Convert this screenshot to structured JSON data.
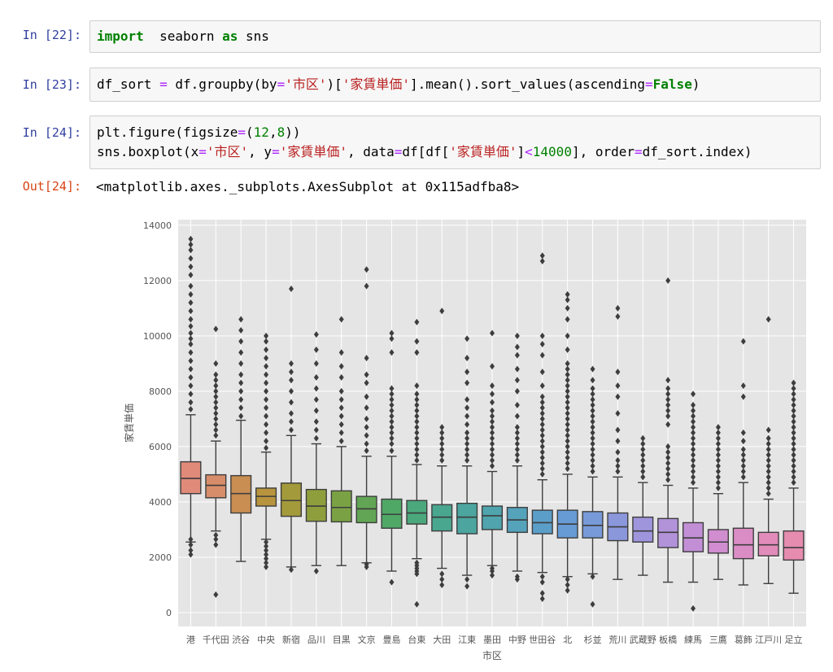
{
  "cells": [
    {
      "prompt": "In [22]:",
      "lines": [
        [
          [
            "kw",
            "import"
          ],
          [
            "",
            "  seaborn "
          ],
          [
            "kw",
            "as"
          ],
          [
            "",
            " sns"
          ]
        ]
      ]
    },
    {
      "prompt": "In [23]:",
      "lines": [
        [
          [
            "",
            "df_sort "
          ],
          [
            "op",
            "="
          ],
          [
            "",
            " df.groupby(by"
          ],
          [
            "op",
            "="
          ],
          [
            "str",
            "'市区'"
          ],
          [
            "",
            ")["
          ],
          [
            "str",
            "'家賃単価'"
          ],
          [
            "",
            "].mean().sort_values(ascending"
          ],
          [
            "op",
            "="
          ],
          [
            "kwc",
            "False"
          ],
          [
            "",
            ")"
          ]
        ]
      ]
    },
    {
      "prompt": "In [24]:",
      "lines": [
        [
          [
            "",
            "plt.figure(figsize"
          ],
          [
            "op",
            "="
          ],
          [
            "",
            "("
          ],
          [
            "num",
            "12"
          ],
          [
            "",
            ","
          ],
          [
            "num",
            "8"
          ],
          [
            "",
            "))"
          ]
        ],
        [
          [
            "",
            "sns.boxplot(x"
          ],
          [
            "op",
            "="
          ],
          [
            "str",
            "'市区'"
          ],
          [
            "",
            ", y"
          ],
          [
            "op",
            "="
          ],
          [
            "str",
            "'家賃単価'"
          ],
          [
            "",
            ", data"
          ],
          [
            "op",
            "="
          ],
          [
            "",
            "df[df["
          ],
          [
            "str",
            "'家賃単価'"
          ],
          [
            "",
            "]"
          ],
          [
            "op",
            "<"
          ],
          [
            "num",
            "14000"
          ],
          [
            "",
            "], order"
          ],
          [
            "op",
            "="
          ],
          [
            "",
            "df_sort.index)"
          ]
        ]
      ]
    }
  ],
  "output": {
    "prompt": "Out[24]:",
    "text": "<matplotlib.axes._subplots.AxesSubplot at 0x115adfba8>"
  },
  "chart_data": {
    "type": "box",
    "xlabel": "市区",
    "ylabel": "家賃単価",
    "ylim": [
      -500,
      14200
    ],
    "yticks": [
      0,
      2000,
      4000,
      6000,
      8000,
      10000,
      12000,
      14000
    ],
    "grid": true,
    "categories": [
      "港",
      "千代田",
      "渋谷",
      "中央",
      "新宿",
      "品川",
      "目黒",
      "文京",
      "豊島",
      "台東",
      "大田",
      "江東",
      "墨田",
      "中野",
      "世田谷",
      "北",
      "杉並",
      "荒川",
      "武蔵野",
      "板橋",
      "練馬",
      "三鷹",
      "葛飾",
      "江戸川",
      "足立"
    ],
    "colors": [
      "#e08a7a",
      "#d88d6a",
      "#c98e52",
      "#b8943e",
      "#a39a3b",
      "#8f9e3d",
      "#7aa245",
      "#62a655",
      "#50a867",
      "#4aa87c",
      "#4aa78f",
      "#4ca59f",
      "#50a4ad",
      "#55a2bb",
      "#5b9fc8",
      "#669bd4",
      "#789ad8",
      "#8b97db",
      "#9f95dc",
      "#b293da",
      "#c28fd6",
      "#d08dcf",
      "#da8cc5",
      "#e18cba",
      "#e68cae"
    ],
    "boxes": [
      {
        "q1": 4300,
        "median": 4850,
        "q3": 5450,
        "whislo": 2550,
        "whishi": 7150,
        "fliers": [
          2100,
          2250,
          2450,
          2650,
          7350,
          7600,
          7900,
          8200,
          8500,
          8800,
          9100,
          9400,
          9700,
          9900,
          10100,
          10350,
          10600,
          10900,
          11200,
          11500,
          11800,
          12200,
          12500,
          12800,
          13100,
          13300,
          13500
        ]
      },
      {
        "q1": 4150,
        "median": 4600,
        "q3": 4980,
        "whislo": 2950,
        "whishi": 6200,
        "fliers": [
          650,
          2450,
          2650,
          2800,
          6400,
          6600,
          6800,
          7000,
          7200,
          7400,
          7600,
          7800,
          8000,
          8200,
          8400,
          8600,
          9000,
          10250
        ]
      },
      {
        "q1": 3600,
        "median": 4300,
        "q3": 4950,
        "whislo": 1850,
        "whishi": 6950,
        "fliers": [
          7100,
          7400,
          7700,
          8000,
          8300,
          8600,
          9000,
          9400,
          9800,
          10200,
          10600
        ]
      },
      {
        "q1": 3850,
        "median": 4200,
        "q3": 4500,
        "whislo": 2650,
        "whishi": 5800,
        "fliers": [
          1650,
          1800,
          1950,
          2100,
          2250,
          2400,
          2550,
          5950,
          6200,
          6500,
          6800,
          7100,
          7400,
          7700,
          8000,
          8300,
          8600,
          8900,
          9200,
          9500,
          9800,
          10000
        ]
      },
      {
        "q1": 3480,
        "median": 4050,
        "q3": 4680,
        "whislo": 1650,
        "whishi": 6400,
        "fliers": [
          1550,
          6600,
          6900,
          7200,
          7600,
          8000,
          8400,
          8700,
          9000,
          11700
        ]
      },
      {
        "q1": 3300,
        "median": 3850,
        "q3": 4450,
        "whislo": 1700,
        "whishi": 6100,
        "fliers": [
          1500,
          6300,
          6600,
          6900,
          7300,
          7700,
          8100,
          8500,
          9000,
          9500,
          10050
        ]
      },
      {
        "q1": 3280,
        "median": 3800,
        "q3": 4400,
        "whislo": 1700,
        "whishi": 6000,
        "fliers": [
          6200,
          6500,
          6800,
          7100,
          7400,
          7700,
          8000,
          8500,
          8900,
          9400,
          10600
        ]
      },
      {
        "q1": 3250,
        "median": 3750,
        "q3": 4200,
        "whislo": 1800,
        "whishi": 5650,
        "fliers": [
          1650,
          1750,
          5850,
          6100,
          6400,
          6700,
          7000,
          7400,
          7800,
          8300,
          8600,
          9200,
          11800,
          12400
        ]
      },
      {
        "q1": 3050,
        "median": 3550,
        "q3": 4100,
        "whislo": 1500,
        "whishi": 5650,
        "fliers": [
          1100,
          5850,
          6100,
          6300,
          6500,
          6700,
          6900,
          7100,
          7300,
          7500,
          7700,
          7900,
          8100,
          9400,
          9900,
          10100
        ]
      },
      {
        "q1": 3200,
        "median": 3600,
        "q3": 4050,
        "whislo": 1950,
        "whishi": 5350,
        "fliers": [
          300,
          1400,
          1500,
          1600,
          1700,
          1800,
          5500,
          5700,
          5900,
          6100,
          6300,
          6500,
          6700,
          6900,
          7100,
          7300,
          7500,
          7700,
          7900,
          8200,
          9400,
          9800,
          10500
        ]
      },
      {
        "q1": 2950,
        "median": 3450,
        "q3": 3900,
        "whislo": 1600,
        "whishi": 5300,
        "fliers": [
          1000,
          1200,
          1400,
          5500,
          5700,
          5900,
          6100,
          6300,
          6500,
          6700,
          10900
        ]
      },
      {
        "q1": 2850,
        "median": 3450,
        "q3": 3950,
        "whislo": 1350,
        "whishi": 5300,
        "fliers": [
          950,
          1200,
          5500,
          5700,
          5900,
          6100,
          6300,
          6500,
          6800,
          7100,
          7400,
          7700,
          8300,
          8700,
          9200,
          9900
        ]
      },
      {
        "q1": 3000,
        "median": 3500,
        "q3": 3850,
        "whislo": 1700,
        "whishi": 5100,
        "fliers": [
          1350,
          1500,
          1600,
          5300,
          5500,
          5700,
          5900,
          6100,
          6300,
          6500,
          6700,
          6900,
          7100,
          7300,
          7600,
          7900,
          8200,
          8900,
          10100
        ]
      },
      {
        "q1": 2900,
        "median": 3350,
        "q3": 3800,
        "whislo": 1500,
        "whishi": 5300,
        "fliers": [
          1200,
          1300,
          5500,
          5700,
          5900,
          6100,
          6300,
          6500,
          6700,
          7100,
          7500,
          8000,
          8400,
          8800,
          9300,
          9600,
          10000
        ]
      },
      {
        "q1": 2850,
        "median": 3250,
        "q3": 3700,
        "whislo": 1450,
        "whishi": 4800,
        "fliers": [
          500,
          700,
          1100,
          1300,
          5000,
          5200,
          5400,
          5600,
          5800,
          6000,
          6200,
          6400,
          6600,
          6800,
          7000,
          7200,
          7400,
          7600,
          7800,
          8200,
          8700,
          9300,
          9700,
          10000,
          12700,
          12900
        ]
      },
      {
        "q1": 2700,
        "median": 3200,
        "q3": 3700,
        "whislo": 1300,
        "whishi": 5000,
        "fliers": [
          800,
          1000,
          1200,
          5200,
          5400,
          5600,
          5800,
          6000,
          6200,
          6400,
          6600,
          6800,
          7000,
          7200,
          7400,
          7600,
          7800,
          8000,
          8200,
          8400,
          8600,
          8800,
          9000,
          9500,
          10000,
          10600,
          11000,
          11300,
          11500
        ]
      },
      {
        "q1": 2700,
        "median": 3150,
        "q3": 3650,
        "whislo": 1400,
        "whishi": 4900,
        "fliers": [
          300,
          1300,
          5100,
          5300,
          5500,
          5700,
          5900,
          6100,
          6300,
          6500,
          6700,
          6900,
          7100,
          7300,
          7500,
          7700,
          7900,
          8100,
          8400,
          8800
        ]
      },
      {
        "q1": 2600,
        "median": 3100,
        "q3": 3600,
        "whislo": 1200,
        "whishi": 4900,
        "fliers": [
          5100,
          5300,
          5500,
          5800,
          6200,
          6600,
          7200,
          7800,
          8200,
          8700,
          10700,
          11000
        ]
      },
      {
        "q1": 2550,
        "median": 2950,
        "q3": 3450,
        "whislo": 1350,
        "whishi": 4700,
        "fliers": [
          4900,
          5100,
          5300,
          5500,
          5700,
          5900,
          6100,
          6300
        ]
      },
      {
        "q1": 2350,
        "median": 2900,
        "q3": 3400,
        "whislo": 1100,
        "whishi": 4600,
        "fliers": [
          4800,
          5000,
          5200,
          5400,
          5600,
          5800,
          6000,
          6800,
          7100,
          7300,
          7500,
          7700,
          7900,
          8100,
          8400,
          12000
        ]
      },
      {
        "q1": 2200,
        "median": 2700,
        "q3": 3250,
        "whislo": 1100,
        "whishi": 4500,
        "fliers": [
          150,
          4700,
          4900,
          5100,
          5300,
          5500,
          5700,
          5900,
          6100,
          6300,
          6500,
          6700,
          6900,
          7100,
          7300,
          7500,
          7900
        ]
      },
      {
        "q1": 2150,
        "median": 2550,
        "q3": 3000,
        "whislo": 1200,
        "whishi": 4300,
        "fliers": [
          4500,
          4700,
          4900,
          5100,
          5300,
          5500,
          5700,
          5900,
          6100,
          6300,
          6500,
          6700
        ]
      },
      {
        "q1": 1950,
        "median": 2450,
        "q3": 3050,
        "whislo": 1000,
        "whishi": 4700,
        "fliers": [
          4900,
          5100,
          5300,
          5500,
          5700,
          5900,
          6200,
          6500,
          7800,
          8200,
          9800
        ]
      },
      {
        "q1": 2050,
        "median": 2450,
        "q3": 2900,
        "whislo": 1050,
        "whishi": 4100,
        "fliers": [
          4300,
          4500,
          4700,
          4900,
          5100,
          5300,
          5500,
          5700,
          5900,
          6100,
          6300,
          6600,
          10600
        ]
      },
      {
        "q1": 1900,
        "median": 2350,
        "q3": 2950,
        "whislo": 700,
        "whishi": 4500,
        "fliers": [
          4700,
          4900,
          5100,
          5300,
          5500,
          5700,
          5900,
          6100,
          6300,
          6500,
          6700,
          6900,
          7100,
          7300,
          7500,
          7700,
          7900,
          8100,
          8300
        ]
      }
    ]
  }
}
